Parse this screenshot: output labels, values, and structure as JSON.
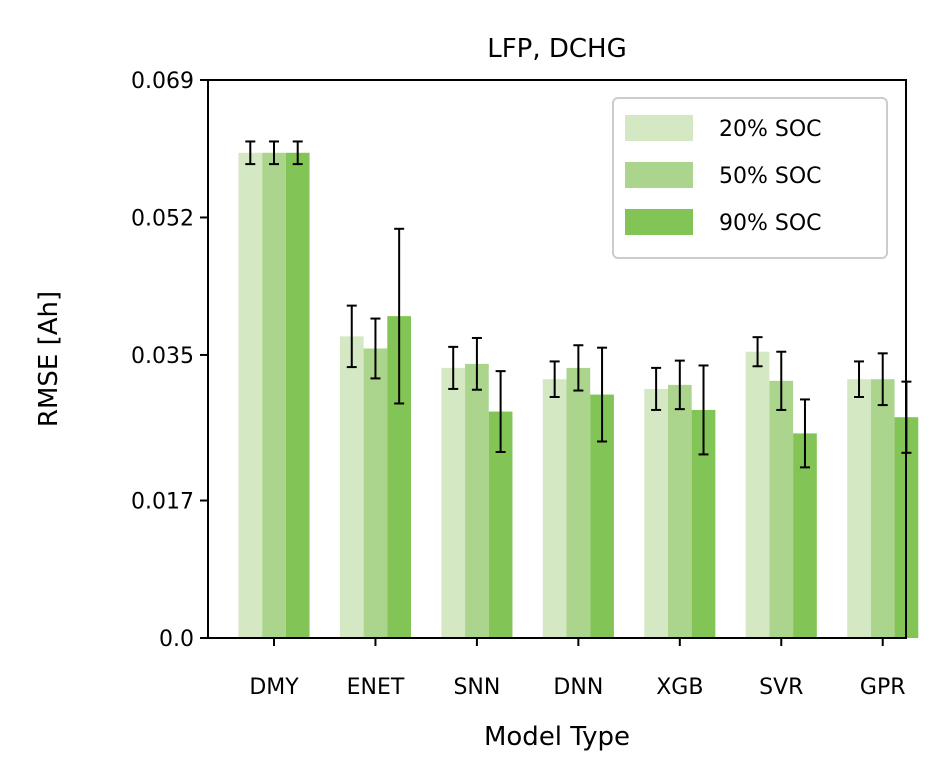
{
  "chart_data": {
    "type": "bar",
    "title": "LFP, DCHG",
    "xlabel": "Model Type",
    "ylabel": "RMSE [Ah]",
    "categories": [
      "DMY",
      "ENET",
      "SNN",
      "DNN",
      "XGB",
      "SVR",
      "GPR"
    ],
    "ylim": [
      0,
      0.069
    ],
    "yticks": [
      0.0,
      0.017,
      0.035,
      0.052,
      0.069
    ],
    "ytick_labels": [
      "0.0",
      "0.017",
      "0.035",
      "0.052",
      "0.069"
    ],
    "grid": false,
    "legend_position": "top-right",
    "series": [
      {
        "name": "20% SOC",
        "color": "#d5e8c4",
        "values": [
          0.06,
          0.0373,
          0.0334,
          0.032,
          0.0308,
          0.0354,
          0.032
        ],
        "errors": [
          0.0014,
          0.0038,
          0.0026,
          0.0022,
          0.0026,
          0.0018,
          0.0022
        ]
      },
      {
        "name": "50% SOC",
        "color": "#abd58c",
        "values": [
          0.06,
          0.0358,
          0.0339,
          0.0334,
          0.0313,
          0.0318,
          0.032
        ],
        "errors": [
          0.0014,
          0.0037,
          0.0032,
          0.0028,
          0.003,
          0.0036,
          0.0032
        ]
      },
      {
        "name": "90% SOC",
        "color": "#82c455",
        "values": [
          0.06,
          0.0398,
          0.028,
          0.0301,
          0.0282,
          0.0253,
          0.0273
        ],
        "errors": [
          0.0014,
          0.0108,
          0.005,
          0.0058,
          0.0055,
          0.0042,
          0.0044
        ]
      }
    ]
  }
}
